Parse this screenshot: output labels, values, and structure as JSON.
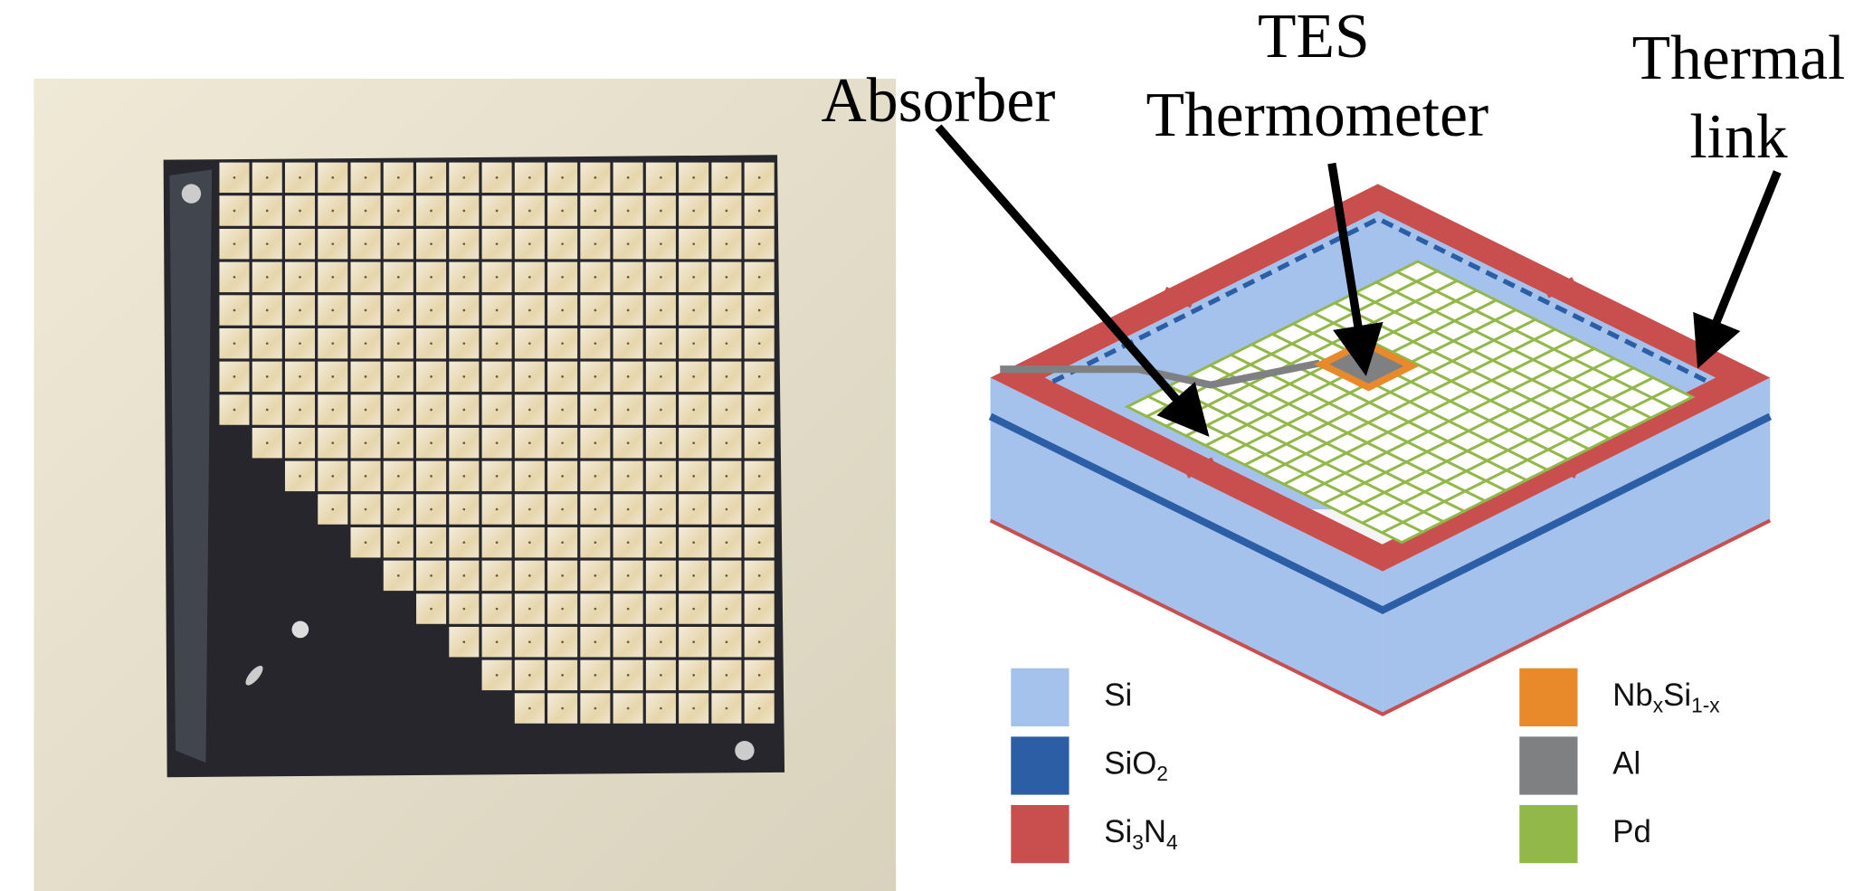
{
  "labels": {
    "absorber": "Absorber",
    "tes": [
      "TES",
      "Thermometer"
    ],
    "thermal_link": [
      "Thermal",
      "link"
    ]
  },
  "legend": [
    {
      "label": [
        "Si"
      ],
      "color": "#a4c2ec"
    },
    {
      "label": [
        "SiO",
        "2"
      ],
      "color": "#2c5ea6"
    },
    {
      "label": [
        "Si",
        "3",
        "N",
        "4"
      ],
      "color": "#c94f4f"
    },
    {
      "label": [
        "Nb",
        "x",
        "Si",
        "1-x"
      ],
      "color": "#e8892a"
    },
    {
      "label": [
        "Al"
      ],
      "color": "#7f8082"
    },
    {
      "label": [
        "Pd"
      ],
      "color": "#93b84a"
    }
  ]
}
